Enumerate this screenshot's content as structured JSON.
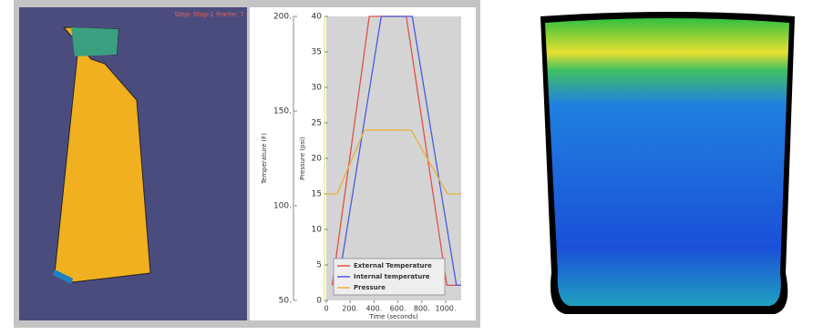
{
  "viewer_status": "Step: Step-1  Frame: 7",
  "chart_data": {
    "type": "line",
    "xlabel": "Time (seconds)",
    "ylabel": "Temperature (F)",
    "y2label": "Pressure (psi)",
    "xlim": [
      0,
      1130
    ],
    "xticks": [
      0,
      {
        "value": 200,
        "label": "200."
      },
      {
        "value": 400,
        "label": "400."
      },
      {
        "value": 600,
        "label": "600."
      },
      {
        "value": 800,
        "label": "800."
      },
      {
        "value": 1000,
        "label": "1000."
      }
    ],
    "ylim": [
      50,
      200
    ],
    "yticks": [
      {
        "value": 50,
        "label": "50."
      },
      {
        "value": 100,
        "label": "100."
      },
      {
        "value": 150,
        "label": "150."
      },
      {
        "value": 200,
        "label": "200."
      }
    ],
    "y2lim": [
      0,
      40
    ],
    "y2ticks": [
      0,
      5,
      10,
      15,
      20,
      25,
      30,
      35,
      40
    ],
    "legend": "bottom",
    "series": [
      {
        "name": "External Temperature",
        "color": "#e0504a",
        "x": [
          50,
          360,
          670,
          1010,
          1130
        ],
        "values": [
          58,
          200,
          200,
          58,
          58
        ]
      },
      {
        "name": "Internal temperature",
        "color": "#4a5ae0",
        "x": [
          90,
          460,
          720,
          1090,
          1130
        ],
        "values": [
          55,
          200,
          200,
          58,
          58
        ]
      },
      {
        "name": "Pressure",
        "color": "#e8b040",
        "axis": "y2",
        "x": [
          0,
          90,
          320,
          710,
          1015,
          1130
        ],
        "values": [
          15,
          15,
          24,
          24,
          15,
          15
        ]
      }
    ]
  }
}
